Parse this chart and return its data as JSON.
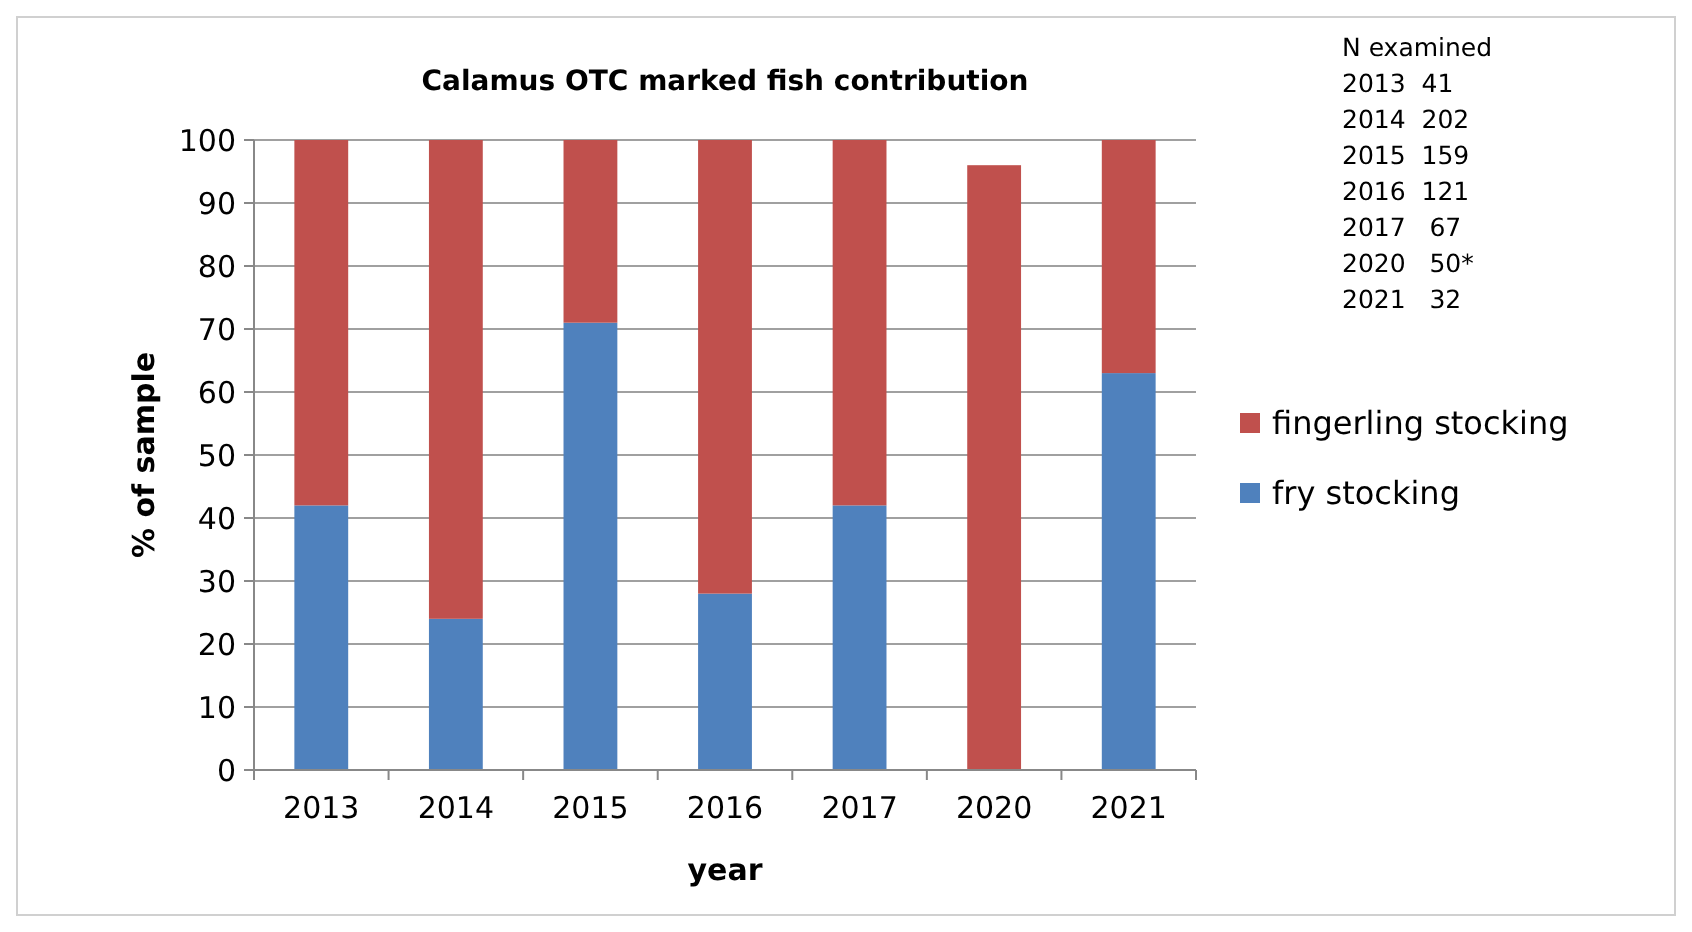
{
  "chart_data": {
    "type": "bar",
    "title": "Calamus OTC marked fish contribution",
    "xlabel": "year",
    "ylabel": "% of sample",
    "categories": [
      "2013",
      "2014",
      "2015",
      "2016",
      "2017",
      "2020",
      "2021"
    ],
    "series": [
      {
        "name": "fry stocking",
        "color": "#4f81bd",
        "values": [
          42,
          24,
          71,
          28,
          42,
          0,
          63
        ]
      },
      {
        "name": "fingerling stocking",
        "color": "#c0504d",
        "values": [
          58,
          76,
          29,
          72,
          58,
          96,
          37
        ]
      }
    ],
    "stacked": true,
    "ylim": [
      0,
      100
    ],
    "yticks": [
      0,
      10,
      20,
      30,
      40,
      50,
      60,
      70,
      80,
      90,
      100
    ],
    "grid": "y",
    "legend": "right",
    "annotations": [
      "N examined",
      "2013  41",
      "2014  202",
      "2015  159",
      "2016  121",
      "2017   67",
      "2020   50*",
      "2021   32"
    ]
  }
}
